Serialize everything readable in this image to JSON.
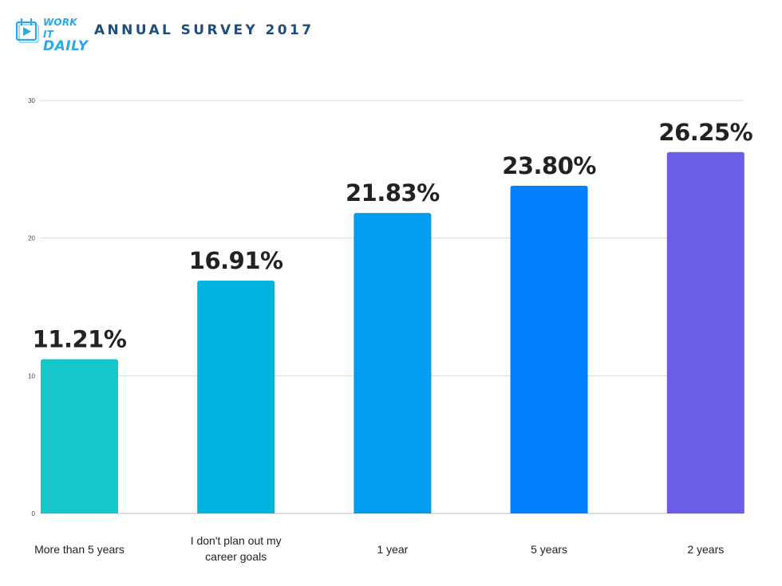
{
  "header": {
    "logo_line1": "WORK IT",
    "logo_line2": "DAILY",
    "title": "ANNUAL SURVEY 2017"
  },
  "colors": {
    "logo_blue": "#2aa8e8",
    "title_navy": "#1e4e79",
    "grid": "#d9d9d9"
  },
  "chart_data": {
    "type": "bar",
    "title": "",
    "xlabel": "",
    "ylabel": "",
    "ylim": [
      0,
      30
    ],
    "yticks": [
      0,
      10,
      20,
      30
    ],
    "grid": true,
    "categories": [
      [
        "More than 5 years"
      ],
      [
        "I don't plan out my",
        "career goals"
      ],
      [
        "1 year"
      ],
      [
        "5 years"
      ],
      [
        "2 years"
      ]
    ],
    "values": [
      11.21,
      16.91,
      21.83,
      23.8,
      26.25
    ],
    "value_labels": [
      "11.21%",
      "16.91%",
      "21.83%",
      "23.80%",
      "26.25%"
    ],
    "bar_colors": [
      "#14c8c9",
      "#00b4e0",
      "#009df0",
      "#0080fa",
      "#6b5ee6"
    ]
  }
}
